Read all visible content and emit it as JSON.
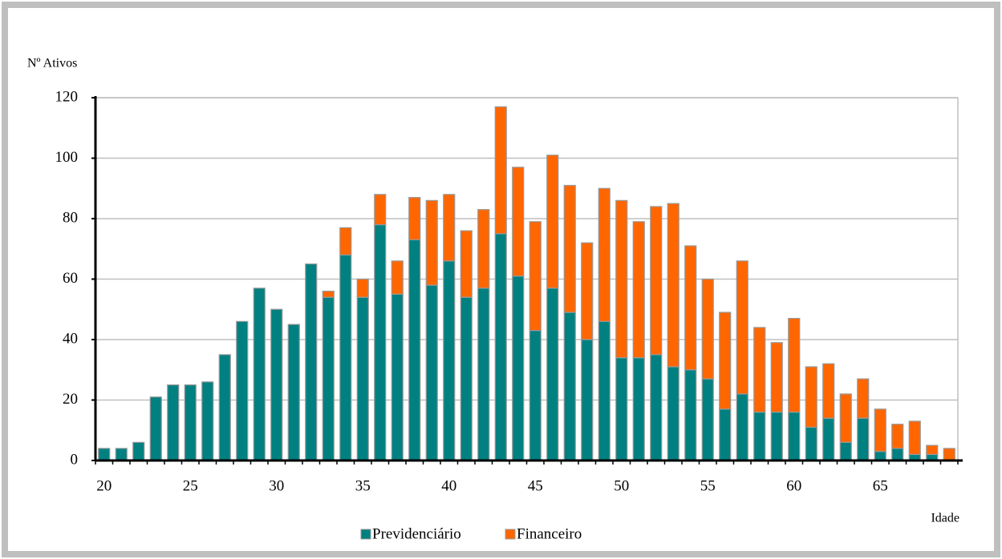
{
  "chart_data": {
    "type": "stacked_bar",
    "y_axis_label": "Nº Ativos",
    "x_axis_label": "Idade",
    "categories": [
      "20",
      null,
      null,
      null,
      null,
      "25",
      null,
      null,
      null,
      null,
      "30",
      null,
      null,
      null,
      null,
      "35",
      null,
      null,
      null,
      null,
      "40",
      null,
      null,
      null,
      null,
      "45",
      null,
      null,
      null,
      null,
      "50",
      null,
      null,
      null,
      null,
      "55",
      null,
      null,
      null,
      null,
      "60",
      null,
      null,
      null,
      null,
      "65",
      null,
      null,
      null,
      null
    ],
    "series": [
      {
        "name": "Previdenciário",
        "color": "#008080",
        "values": [
          4,
          4,
          6,
          21,
          25,
          25,
          26,
          35,
          46,
          57,
          50,
          45,
          65,
          54,
          68,
          54,
          78,
          55,
          73,
          58,
          66,
          54,
          57,
          75,
          61,
          43,
          57,
          49,
          40,
          46,
          34,
          34,
          35,
          31,
          30,
          27,
          17,
          22,
          16,
          16,
          16,
          11,
          14,
          6,
          14,
          3,
          4,
          2,
          2,
          0
        ]
      },
      {
        "name": "Financeiro",
        "color": "#ff6600",
        "values": [
          0,
          0,
          0,
          0,
          0,
          0,
          0,
          0,
          0,
          0,
          0,
          0,
          0,
          2,
          9,
          6,
          10,
          11,
          14,
          28,
          22,
          22,
          26,
          42,
          36,
          36,
          44,
          42,
          32,
          44,
          52,
          45,
          49,
          54,
          41,
          33,
          32,
          44,
          28,
          23,
          31,
          20,
          18,
          16,
          13,
          14,
          8,
          11,
          3,
          4
        ]
      }
    ],
    "ylim": [
      0,
      120
    ],
    "yticks": [
      0,
      20,
      40,
      60,
      80,
      100,
      120
    ],
    "grid": true,
    "legend": "bottom"
  }
}
